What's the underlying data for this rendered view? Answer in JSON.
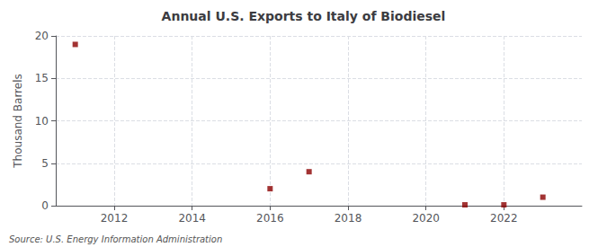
{
  "chart_data": {
    "type": "scatter",
    "title": "Annual U.S. Exports to Italy of Biodiesel",
    "ylabel": "Thousand Barrels",
    "annotations": [
      "Source: U.S. Energy Information Administration"
    ],
    "x": [
      2011,
      2016,
      2017,
      2021,
      2022,
      2023
    ],
    "values": [
      19,
      2,
      4,
      0.1,
      0.1,
      1
    ],
    "color": "#8b0000",
    "marker": "square",
    "xlim": [
      2010.5,
      2024
    ],
    "xticks": [
      2012,
      2014,
      2016,
      2018,
      2020,
      2022
    ],
    "ylim": [
      0,
      20
    ],
    "yticks": [
      0,
      5,
      10,
      15,
      20
    ],
    "grid": true
  }
}
